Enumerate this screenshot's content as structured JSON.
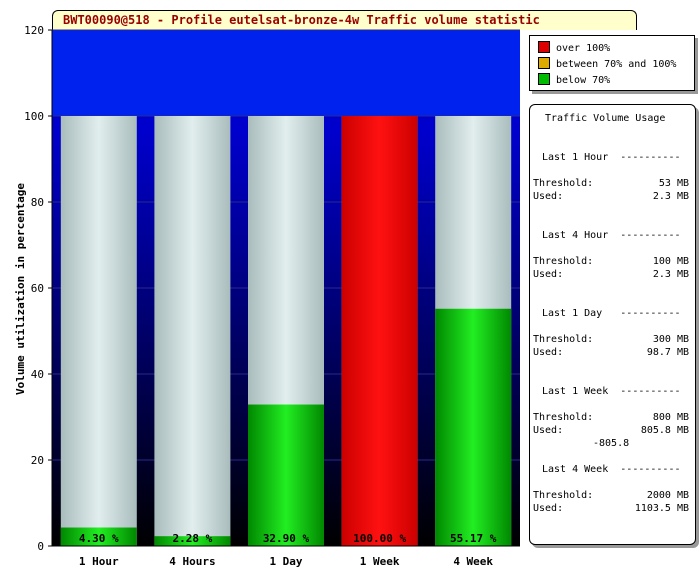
{
  "chart_data": {
    "type": "bar",
    "title": "BWT00090@518 - Profile eutelsat-bronze-4w Traffic volume statistic",
    "ylabel": "Volume utilization in percentage",
    "xlabel": "",
    "ylim": [
      0,
      120
    ],
    "yticks": [
      0,
      20,
      40,
      60,
      80,
      100,
      120
    ],
    "categories": [
      "1 Hour",
      "4 Hours",
      "1 Day",
      "1 Week",
      "4 Week"
    ],
    "values": [
      4.3,
      2.28,
      32.9,
      100.0,
      55.17
    ],
    "value_labels": [
      "4.30 %",
      "2.28 %",
      "32.90 %",
      "100.00 %",
      "55.17 %"
    ],
    "legend": [
      {
        "label": "over 100%",
        "color": "#dd0000"
      },
      {
        "label": "between 70% and 100%",
        "color": "#ddaa00"
      },
      {
        "label": "below 70%",
        "color": "#00bb00"
      }
    ],
    "colors": {
      "background_top": "#0022ee",
      "background_bottom": "#000000",
      "capacity_bar": "#c4d6d6",
      "over": "#ee0000",
      "below": "#11cc11"
    }
  },
  "usage": {
    "title": "Traffic Volume Usage",
    "threshold_label": "Threshold:",
    "used_label": "Used:",
    "periods": [
      {
        "name": "Last 1 Hour",
        "dashes": "----------",
        "threshold": "53 MB",
        "used": "2.3 MB",
        "extra": ""
      },
      {
        "name": "Last 4 Hour",
        "dashes": "----------",
        "threshold": "100 MB",
        "used": "2.3 MB",
        "extra": ""
      },
      {
        "name": "Last 1 Day",
        "dashes": "----------",
        "threshold": "300 MB",
        "used": "98.7 MB",
        "extra": ""
      },
      {
        "name": "Last 1 Week",
        "dashes": "----------",
        "threshold": "800 MB",
        "used": "805.8 MB",
        "extra": "-805.8"
      },
      {
        "name": "Last 4 Week",
        "dashes": "----------",
        "threshold": "2000 MB",
        "used": "1103.5 MB",
        "extra": ""
      }
    ]
  }
}
